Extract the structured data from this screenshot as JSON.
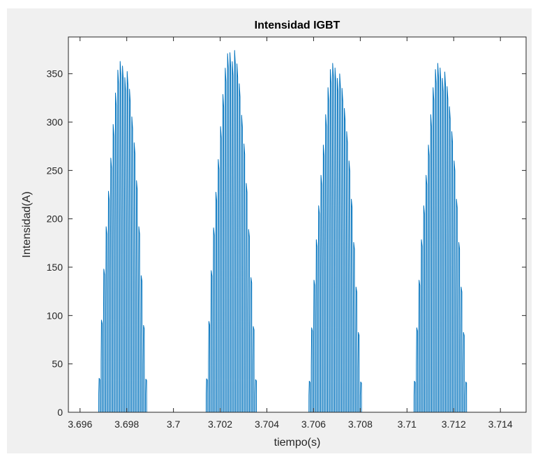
{
  "chart_data": {
    "type": "line",
    "title": "Intensidad IGBT",
    "xlabel": "tiempo(s)",
    "ylabel": "Intensidad(A)",
    "xlim": [
      3.6955,
      3.7151
    ],
    "ylim": [
      0,
      388
    ],
    "xticks": [
      3.696,
      3.698,
      3.7,
      3.702,
      3.704,
      3.706,
      3.708,
      3.71,
      3.712,
      3.714
    ],
    "xtick_labels": [
      "3.696",
      "3.698",
      "3.7",
      "3.702",
      "3.704",
      "3.706",
      "3.708",
      "3.71",
      "3.712",
      "3.714"
    ],
    "yticks": [
      0,
      50,
      100,
      150,
      200,
      250,
      300,
      350
    ],
    "ytick_labels": [
      "0",
      "50",
      "100",
      "150",
      "200",
      "250",
      "300",
      "350"
    ],
    "grid": false,
    "series": [
      {
        "color": "#0072bd",
        "x_start": 3.696,
        "x_end": 3.7146,
        "switching_period": 0.0001,
        "duty": 0.5,
        "pulses": [
          {
            "t_start": 3.6968,
            "t_end": 3.6989,
            "peak": 358,
            "peak_max": 367
          },
          {
            "t_start": 3.7014,
            "t_end": 3.7036,
            "peak": 368,
            "peak_max": 382
          },
          {
            "t_start": 3.7058,
            "t_end": 3.7081,
            "peak": 356,
            "peak_max": 362
          },
          {
            "t_start": 3.7103,
            "t_end": 3.7126,
            "peak": 356,
            "peak_max": 364
          }
        ]
      }
    ]
  }
}
